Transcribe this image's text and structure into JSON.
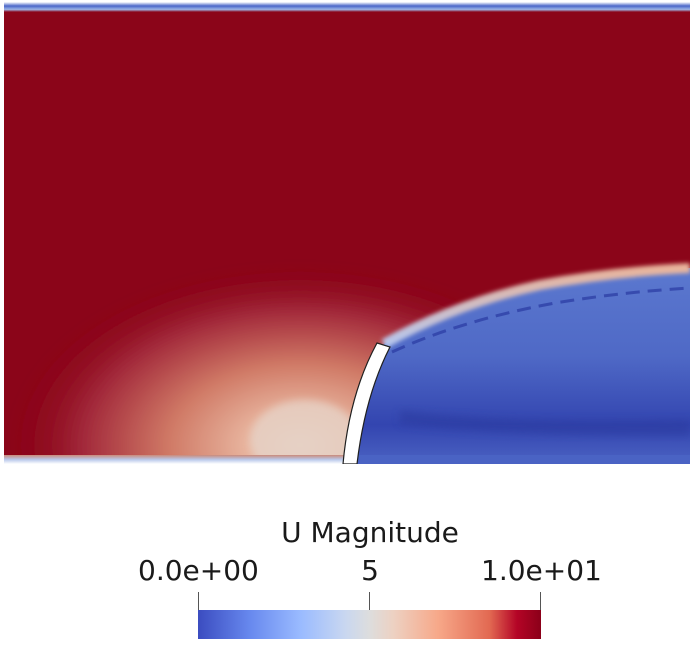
{
  "legend": {
    "title": "U Magnitude",
    "tick_min": "0.0e+00",
    "tick_mid": "5",
    "tick_max": "1.0e+01",
    "range": [
      0,
      10
    ],
    "colormap": "Cool to Warm"
  },
  "colors": {
    "high": "#8b0519",
    "low": "#3b4cc0",
    "mid": "#dddddd",
    "wall": "#ffffff"
  }
}
